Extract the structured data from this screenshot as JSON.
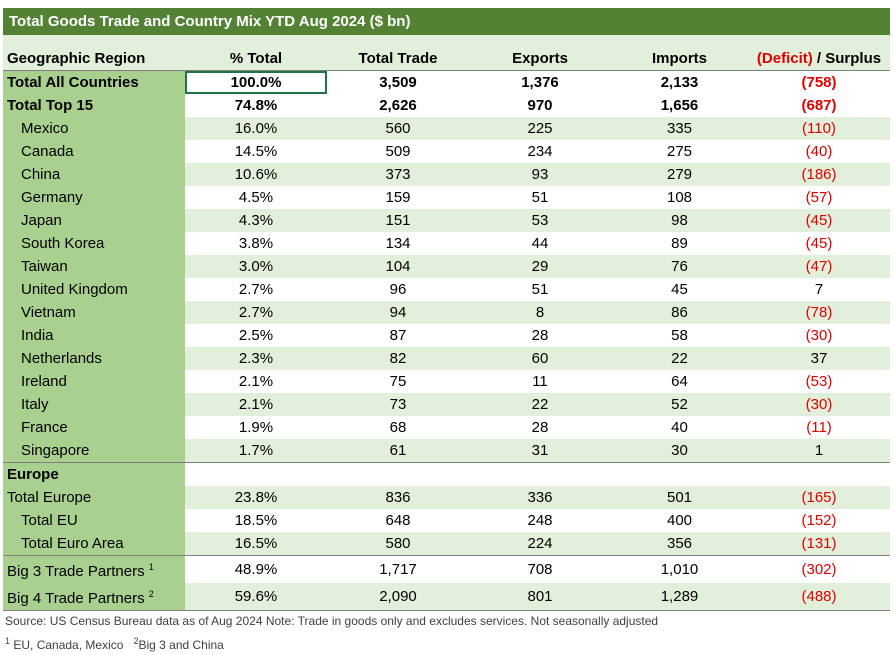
{
  "title": "Total Goods Trade and Country Mix YTD Aug 2024 ($ bn)",
  "columns": {
    "region": "Geographic Region",
    "pct": "% Total",
    "total": "Total Trade",
    "exports": "Exports",
    "imports": "Imports",
    "balance_deficit": "(Deficit)",
    "balance_surplus": " / Surplus"
  },
  "rows": [
    {
      "name": "Total All Countries",
      "pct": "100.0%",
      "total": "3,509",
      "exports": "1,376",
      "imports": "2,133",
      "balance": "(758)"
    },
    {
      "name": "Total Top 15",
      "pct": "74.8%",
      "total": "2,626",
      "exports": "970",
      "imports": "1,656",
      "balance": "(687)"
    },
    {
      "name": "Mexico",
      "pct": "16.0%",
      "total": "560",
      "exports": "225",
      "imports": "335",
      "balance": "(110)"
    },
    {
      "name": "Canada",
      "pct": "14.5%",
      "total": "509",
      "exports": "234",
      "imports": "275",
      "balance": "(40)"
    },
    {
      "name": "China",
      "pct": "10.6%",
      "total": "373",
      "exports": "93",
      "imports": "279",
      "balance": "(186)"
    },
    {
      "name": "Germany",
      "pct": "4.5%",
      "total": "159",
      "exports": "51",
      "imports": "108",
      "balance": "(57)"
    },
    {
      "name": "Japan",
      "pct": "4.3%",
      "total": "151",
      "exports": "53",
      "imports": "98",
      "balance": "(45)"
    },
    {
      "name": "South Korea",
      "pct": "3.8%",
      "total": "134",
      "exports": "44",
      "imports": "89",
      "balance": "(45)"
    },
    {
      "name": "Taiwan",
      "pct": "3.0%",
      "total": "104",
      "exports": "29",
      "imports": "76",
      "balance": "(47)"
    },
    {
      "name": "United Kingdom",
      "pct": "2.7%",
      "total": "96",
      "exports": "51",
      "imports": "45",
      "balance": "7"
    },
    {
      "name": "Vietnam",
      "pct": "2.7%",
      "total": "94",
      "exports": "8",
      "imports": "86",
      "balance": "(78)"
    },
    {
      "name": "India",
      "pct": "2.5%",
      "total": "87",
      "exports": "28",
      "imports": "58",
      "balance": "(30)"
    },
    {
      "name": "Netherlands",
      "pct": "2.3%",
      "total": "82",
      "exports": "60",
      "imports": "22",
      "balance": "37"
    },
    {
      "name": "Ireland",
      "pct": "2.1%",
      "total": "75",
      "exports": "11",
      "imports": "64",
      "balance": "(53)"
    },
    {
      "name": "Italy",
      "pct": "2.1%",
      "total": "73",
      "exports": "22",
      "imports": "52",
      "balance": "(30)"
    },
    {
      "name": "France",
      "pct": "1.9%",
      "total": "68",
      "exports": "28",
      "imports": "40",
      "balance": "(11)"
    },
    {
      "name": "Singapore",
      "pct": "1.7%",
      "total": "61",
      "exports": "31",
      "imports": "30",
      "balance": "1"
    }
  ],
  "europe_heading": "Europe",
  "europe_rows": [
    {
      "name": "Total Europe",
      "pct": "23.8%",
      "total": "836",
      "exports": "336",
      "imports": "501",
      "balance": "(165)"
    },
    {
      "name": "Total EU",
      "pct": "18.5%",
      "total": "648",
      "exports": "248",
      "imports": "400",
      "balance": "(152)"
    },
    {
      "name": "Total Euro Area",
      "pct": "16.5%",
      "total": "580",
      "exports": "224",
      "imports": "356",
      "balance": "(131)"
    }
  ],
  "partner_rows": [
    {
      "name": "Big 3 Trade Partners",
      "sup": "1",
      "pct": "48.9%",
      "total": "1,717",
      "exports": "708",
      "imports": "1,010",
      "balance": "(302)"
    },
    {
      "name": "Big 4 Trade Partners",
      "sup": "2",
      "pct": "59.6%",
      "total": "2,090",
      "exports": "801",
      "imports": "1,289",
      "balance": "(488)"
    }
  ],
  "notes": {
    "source": "Source: US Census Bureau data as of Aug 2024 Note: Trade in goods only and excludes services. Not seasonally adjusted",
    "fn1_mark": "1",
    "fn1_text": "EU, Canada, Mexico",
    "fn2_mark": "2",
    "fn2_text": "Big 3 and China"
  },
  "colors": {
    "title_bg": "#548235",
    "label_bg": "#a9d08e",
    "alt_bg": "#e2efda",
    "negative": "#e00000"
  }
}
